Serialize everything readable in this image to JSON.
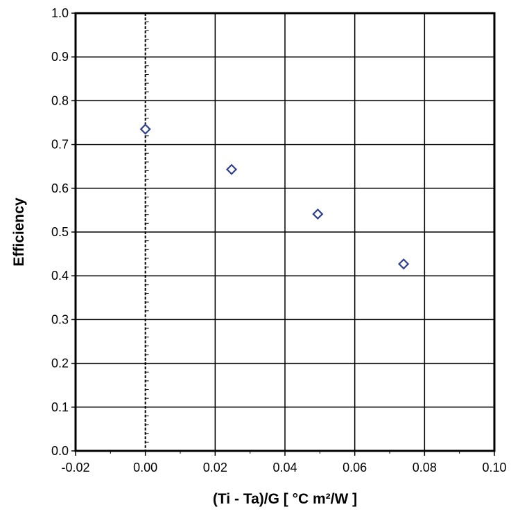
{
  "chart_data": {
    "type": "scatter",
    "title": "",
    "xlabel": "(Ti - Ta)/G  [ °C m²/W ]",
    "ylabel": "Efficiency",
    "xlim": [
      -0.02,
      0.1
    ],
    "ylim": [
      0.0,
      1.0
    ],
    "x_ticks": [
      -0.02,
      0.0,
      0.02,
      0.04,
      0.06,
      0.08,
      0.1
    ],
    "x_tick_labels": [
      "-0.02",
      "0.00",
      "0.02",
      "0.04",
      "0.06",
      "0.08",
      "0.10"
    ],
    "y_ticks": [
      0.0,
      0.1,
      0.2,
      0.3,
      0.4,
      0.5,
      0.6,
      0.7,
      0.8,
      0.9,
      1.0
    ],
    "y_tick_labels": [
      "0.0",
      "0.1",
      "0.2",
      "0.3",
      "0.4",
      "0.5",
      "0.6",
      "0.7",
      "0.8",
      "0.9",
      "1.0"
    ],
    "grid": true,
    "legend": "none",
    "marker": "diamond",
    "series": [
      {
        "x": [
          0.0,
          0.0247,
          0.0494,
          0.074
        ],
        "y": [
          0.735,
          0.643,
          0.541,
          0.427
        ],
        "color": "#2e3f8f"
      }
    ]
  }
}
